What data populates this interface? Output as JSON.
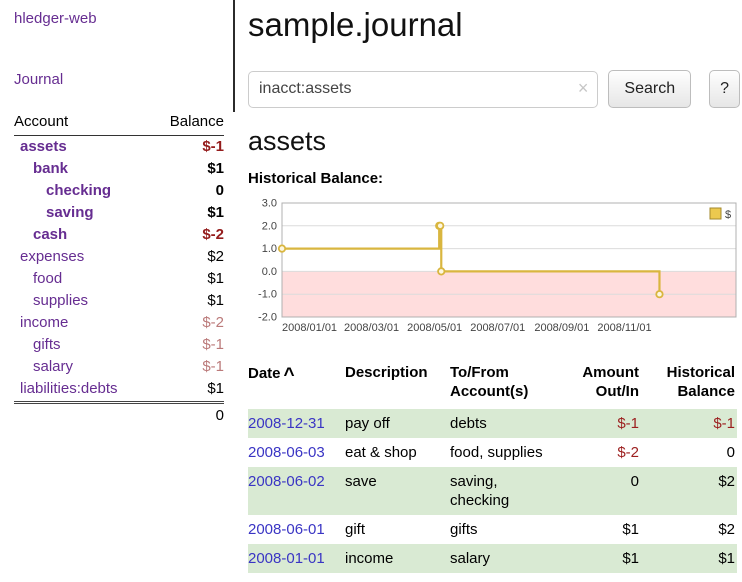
{
  "colors": {
    "link_purple": "#662d91",
    "date_link_blue": "#3a35c4",
    "neg_strong": "#941c1c",
    "neg_muted": "#bb7a7a",
    "row_green": "#d9ead3",
    "chart_gold": "#d9b63f",
    "chart_neg_bg": "#ffdddd"
  },
  "sidebar": {
    "app_title": "hledger-web",
    "journal_link": "Journal",
    "headers": {
      "account": "Account",
      "balance": "Balance"
    },
    "accounts": [
      {
        "name": "assets",
        "balance": "$-1",
        "level": 0,
        "bold": true,
        "negative": true
      },
      {
        "name": "bank",
        "balance": "$1",
        "level": 1,
        "bold": true,
        "negative": false
      },
      {
        "name": "checking",
        "balance": "0",
        "level": 2,
        "bold": true,
        "negative": false
      },
      {
        "name": "saving",
        "balance": "$1",
        "level": 2,
        "bold": true,
        "negative": false
      },
      {
        "name": "cash",
        "balance": "$-2",
        "level": 1,
        "bold": true,
        "negative": true
      },
      {
        "name": "expenses",
        "balance": "$2",
        "level": 0,
        "bold": false,
        "negative": false
      },
      {
        "name": "food",
        "balance": "$1",
        "level": 1,
        "bold": false,
        "negative": false
      },
      {
        "name": "supplies",
        "balance": "$1",
        "level": 1,
        "bold": false,
        "negative": false
      },
      {
        "name": "income",
        "balance": "$-2",
        "level": 0,
        "bold": false,
        "negative": true
      },
      {
        "name": "gifts",
        "balance": "$-1",
        "level": 1,
        "bold": false,
        "negative": true
      },
      {
        "name": "salary",
        "balance": "$-1",
        "level": 1,
        "bold": false,
        "negative": true
      },
      {
        "name": "liabilities:debts",
        "balance": "$1",
        "level": 0,
        "bold": false,
        "negative": false
      }
    ],
    "total": "0"
  },
  "main": {
    "title": "sample.journal",
    "search": {
      "value": "inacct:assets",
      "clear_icon": "×",
      "search_button": "Search",
      "help_button": "?"
    },
    "heading": "assets",
    "chart_title": "Historical Balance:",
    "register": {
      "headers": {
        "date": "Date",
        "sort_indicator": "^",
        "description": "Description",
        "accounts": "To/From Account(s)",
        "amount": "Amount Out/In",
        "balance": "Historical Balance"
      },
      "rows": [
        {
          "date": "2008-12-31",
          "description": "pay off",
          "accounts": "debts",
          "amount": "$-1",
          "amount_negative": true,
          "balance": "$-1",
          "balance_negative": true,
          "shaded": true
        },
        {
          "date": "2008-06-03",
          "description": "eat & shop",
          "accounts": "food, supplies",
          "amount": "$-2",
          "amount_negative": true,
          "balance": "0",
          "balance_negative": false,
          "shaded": false
        },
        {
          "date": "2008-06-02",
          "description": "save",
          "accounts": "saving, checking",
          "amount": "0",
          "amount_negative": false,
          "balance": "$2",
          "balance_negative": false,
          "shaded": true
        },
        {
          "date": "2008-06-01",
          "description": "gift",
          "accounts": "gifts",
          "amount": "$1",
          "amount_negative": false,
          "balance": "$2",
          "balance_negative": false,
          "shaded": false
        },
        {
          "date": "2008-01-01",
          "description": "income",
          "accounts": "salary",
          "amount": "$1",
          "amount_negative": false,
          "balance": "$1",
          "balance_negative": false,
          "shaded": true
        }
      ]
    }
  },
  "chart_data": {
    "type": "line",
    "step": true,
    "title": "Historical Balance:",
    "series": [
      {
        "name": "$",
        "points": [
          {
            "date": "2008-01-01",
            "value": 1
          },
          {
            "date": "2008-06-01",
            "value": 2
          },
          {
            "date": "2008-06-02",
            "value": 2
          },
          {
            "date": "2008-06-03",
            "value": 0
          },
          {
            "date": "2008-12-31",
            "value": -1
          }
        ]
      }
    ],
    "ylim": [
      -2,
      3
    ],
    "yticks": [
      "3.0",
      "2.0",
      "1.0",
      "0.0",
      "-1.0",
      "-2.0"
    ],
    "xticks": [
      {
        "date": "2008-01-01",
        "label": "2008/01/01"
      },
      {
        "date": "2008-03-01",
        "label": "2008/03/01"
      },
      {
        "date": "2008-05-01",
        "label": "2008/05/01"
      },
      {
        "date": "2008-07-01",
        "label": "2008/07/01"
      },
      {
        "date": "2008-09-01",
        "label": "2008/09/01"
      },
      {
        "date": "2008-11-01",
        "label": "2008/11/01"
      }
    ],
    "x_start": "2008-01-01",
    "x_end": "2009-03-15",
    "legend": {
      "label": "$",
      "position": "top-right"
    },
    "grid": true,
    "negative_region_shaded": true
  }
}
